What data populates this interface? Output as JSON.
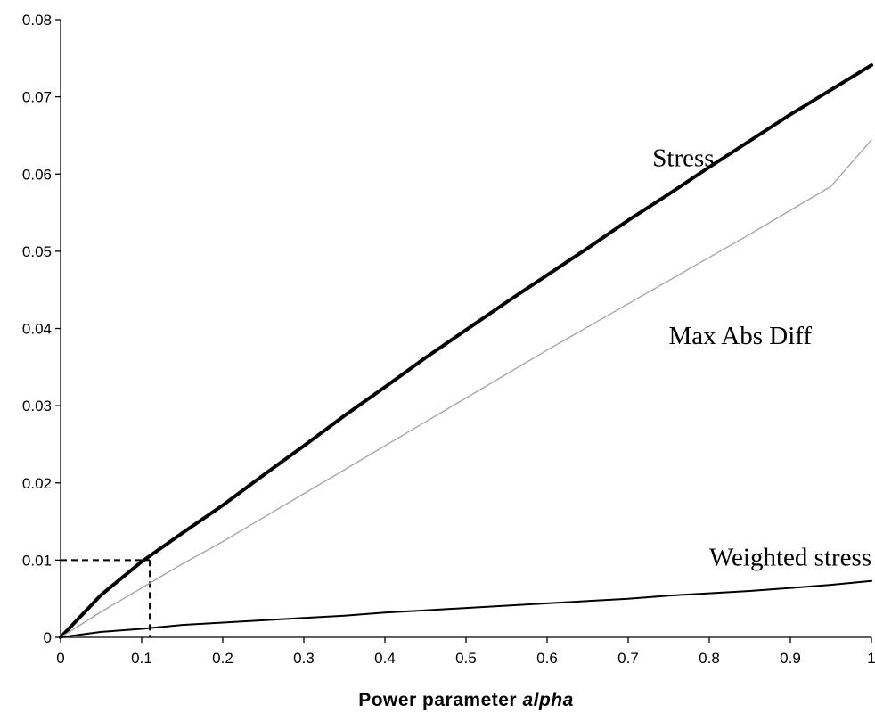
{
  "chart_data": {
    "type": "line",
    "xlabel": "Power parameter",
    "xlabel_emphasis": "alpha",
    "ylabel": "",
    "xlim": [
      0,
      1
    ],
    "ylim": [
      0,
      0.08
    ],
    "x_ticks": [
      "0",
      "0.1",
      "0.2",
      "0.3",
      "0.4",
      "0.5",
      "0.6",
      "0.7",
      "0.8",
      "0.9",
      "1"
    ],
    "y_ticks": [
      "0",
      "0.01",
      "0.02",
      "0.03",
      "0.04",
      "0.05",
      "0.06",
      "0.07",
      "0.08"
    ],
    "grid": false,
    "x": [
      0,
      0.05,
      0.1,
      0.15,
      0.2,
      0.25,
      0.3,
      0.35,
      0.4,
      0.45,
      0.5,
      0.55,
      0.6,
      0.65,
      0.7,
      0.75,
      0.8,
      0.85,
      0.9,
      0.95,
      1
    ],
    "series": [
      {
        "name": "Stress",
        "color": "#000000",
        "style": "thick",
        "values": [
          0,
          0.0055,
          0.0098,
          0.0135,
          0.0171,
          0.021,
          0.0248,
          0.0287,
          0.0324,
          0.0362,
          0.0398,
          0.0434,
          0.0469,
          0.0504,
          0.054,
          0.0574,
          0.0609,
          0.0643,
          0.0677,
          0.0709,
          0.0741
        ]
      },
      {
        "name": "Max Abs Diff",
        "color": "#a6a6a6",
        "style": "thin",
        "values": [
          0,
          0.0033,
          0.0064,
          0.0095,
          0.0124,
          0.0155,
          0.0186,
          0.0217,
          0.0248,
          0.0279,
          0.031,
          0.0341,
          0.0372,
          0.0402,
          0.0432,
          0.0462,
          0.0492,
          0.0522,
          0.0553,
          0.0584,
          0.0644
        ]
      },
      {
        "name": "Weighted stress",
        "color": "#000000",
        "style": "medium",
        "values": [
          0,
          0.0007,
          0.0011,
          0.0016,
          0.0019,
          0.0022,
          0.0025,
          0.0028,
          0.0032,
          0.0035,
          0.0038,
          0.0041,
          0.0044,
          0.0047,
          0.005,
          0.0054,
          0.0057,
          0.006,
          0.0064,
          0.0068,
          0.0073
        ]
      }
    ],
    "reference_lines": {
      "x": 0.11,
      "y": 0.01,
      "style": "dashed"
    },
    "annotations": [
      {
        "text": "Stress",
        "x": 0.73,
        "y": 0.061
      },
      {
        "text": "Max Abs Diff",
        "x": 0.75,
        "y": 0.038
      },
      {
        "text": "Weighted stress",
        "x": 0.8,
        "y": 0.0093
      }
    ]
  }
}
